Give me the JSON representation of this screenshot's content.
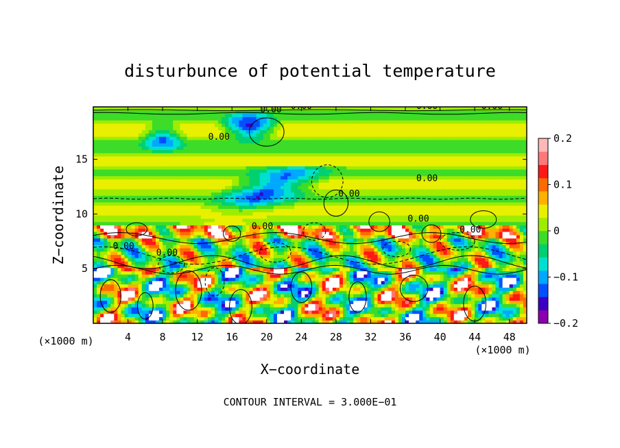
{
  "chart_data": {
    "type": "heatmap",
    "title": "disturbunce of potential temperature",
    "xlabel": "X−coordinate",
    "ylabel": "Z−coordinate",
    "x_unit": "(×1000 m)",
    "z_unit": "(×1000 m)",
    "xlim": [
      0,
      50
    ],
    "ylim": [
      0,
      19.8
    ],
    "x_ticks": [
      "4",
      "8",
      "12",
      "16",
      "20",
      "24",
      "28",
      "32",
      "36",
      "40",
      "44",
      "48"
    ],
    "y_ticks": [
      "5",
      "10",
      "15"
    ],
    "colorbar": {
      "min": -0.2,
      "max": 0.2,
      "tick_labels": [
        "0.2",
        "0.1",
        "0",
        "−0.1",
        "−0.2"
      ],
      "colors": [
        "#8b00b0",
        "#3a00c8",
        "#0050ff",
        "#00a8ff",
        "#00e0d0",
        "#00d070",
        "#3cdc28",
        "#a0ec00",
        "#e8f000",
        "#ffb000",
        "#ff6a00",
        "#ff1818",
        "#ff7878",
        "#ffb8b8"
      ]
    },
    "contour_labels": [
      "0.00",
      "0.00",
      "0.00",
      "0.00",
      "0.00",
      "0.00",
      "0.00",
      "0.00",
      "0.00",
      "0.00",
      "0.00",
      "0.00"
    ],
    "footer": "CONTOUR INTERVAL = 3.000E−01"
  }
}
